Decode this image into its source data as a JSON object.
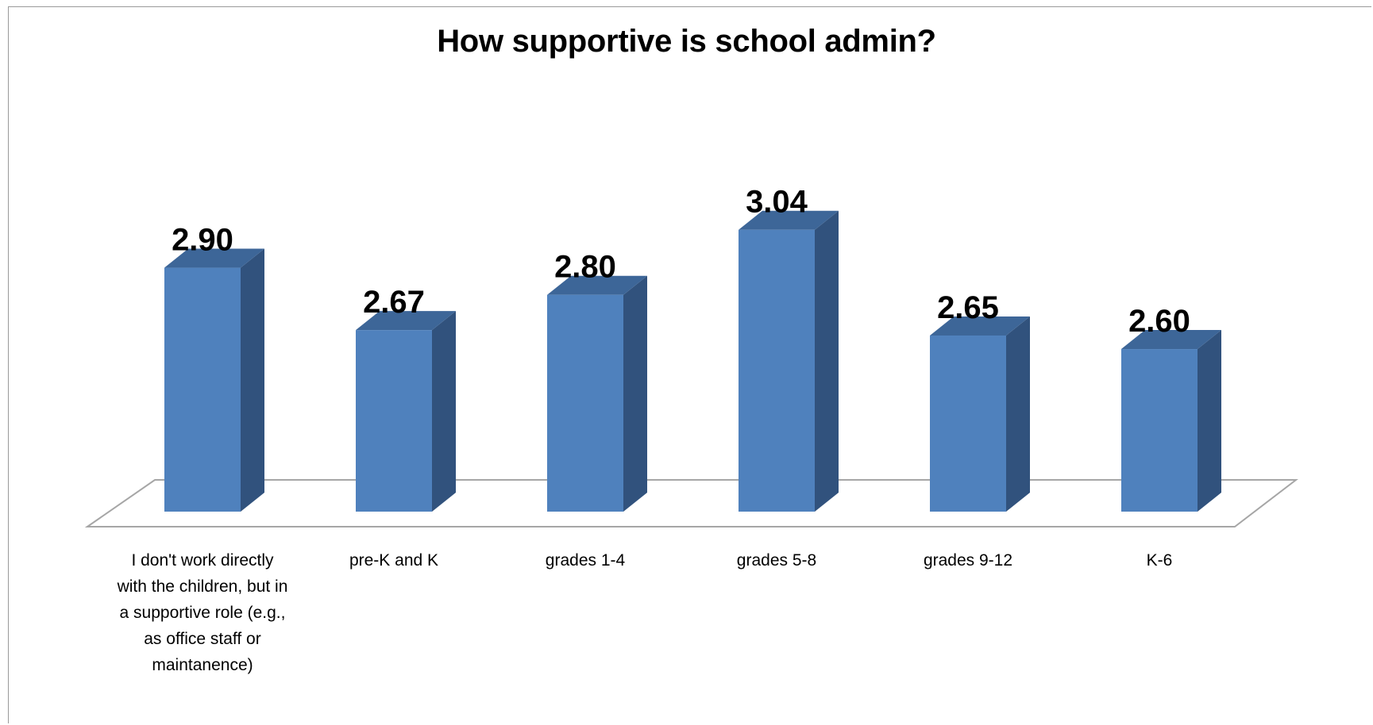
{
  "chart_data": {
    "type": "bar",
    "title": "How supportive is school admin?",
    "categories": [
      "I don't work directly with the children, but in a supportive role (e.g., as office staff or maintanence)",
      "pre-K and K",
      "grades 1-4",
      "grades 5-8",
      "grades 9-12",
      "K-6"
    ],
    "values": [
      2.9,
      2.67,
      2.8,
      3.04,
      2.65,
      2.6
    ],
    "data_labels": [
      "2.90",
      "2.67",
      "2.80",
      "3.04",
      "2.65",
      "2.60"
    ],
    "xlabel": "",
    "ylabel": "",
    "ylim": [
      2.0,
      3.2
    ],
    "three_d": true,
    "grid": false,
    "legend": "none",
    "colors": {
      "bar_front": "#4F81BD",
      "bar_side": "#31527D",
      "bar_top": "#3D6698",
      "floor_line": "#A6A6A6"
    }
  }
}
